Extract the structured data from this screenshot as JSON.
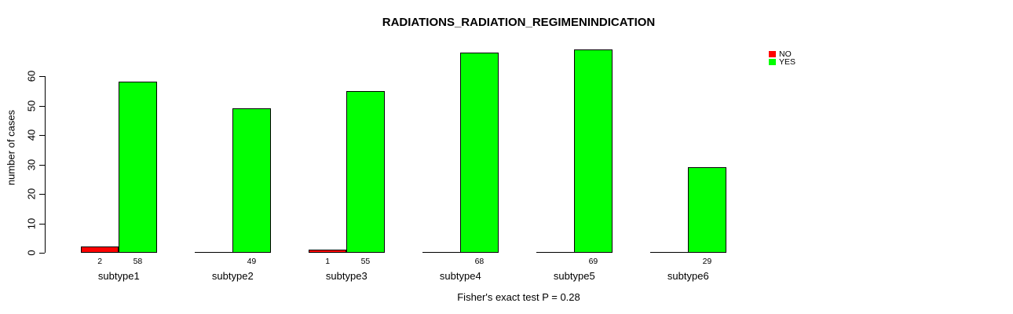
{
  "title": "RADIATIONS_RADIATION_REGIMENINDICATION",
  "caption": "Fisher's exact test P = 0.28",
  "legend": {
    "items": [
      {
        "label": "NO",
        "color": "#ff0000"
      },
      {
        "label": "YES",
        "color": "#00ff00"
      }
    ]
  },
  "chart_data": {
    "type": "bar",
    "title": "RADIATIONS_RADIATION_REGIMENINDICATION",
    "xlabel": "",
    "ylabel": "number of cases",
    "categories": [
      "subtype1",
      "subtype2",
      "subtype3",
      "subtype4",
      "subtype5",
      "subtype6"
    ],
    "series": [
      {
        "name": "NO",
        "color": "#ff0000",
        "values": [
          2,
          0,
          1,
          0,
          0,
          0
        ]
      },
      {
        "name": "YES",
        "color": "#00ff00",
        "values": [
          58,
          49,
          55,
          68,
          69,
          29
        ]
      }
    ],
    "bar_value_labels": [
      [
        "2",
        "58"
      ],
      [
        "",
        "49"
      ],
      [
        "1",
        "55"
      ],
      [
        "",
        "68"
      ],
      [
        "",
        "69"
      ],
      [
        "",
        "29"
      ]
    ],
    "yticks": [
      0,
      10,
      20,
      30,
      40,
      50,
      60
    ],
    "ylim": [
      0,
      60
    ],
    "grid": false,
    "legend_position": "top-right",
    "annotation": "Fisher's exact test P = 0.28"
  }
}
